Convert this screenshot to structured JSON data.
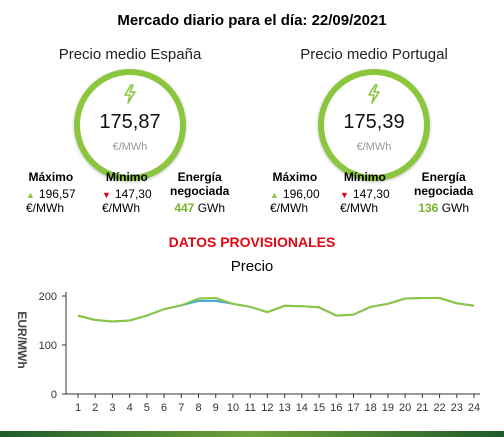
{
  "title": "Mercado diario para el día: 22/09/2021",
  "notice": "DATOS PROVISIONALES",
  "chart_title": "Precio",
  "colors": {
    "accent": "#8cc63f",
    "up": "#8cc63f",
    "down": "#e0001a",
    "notice": "#e30613"
  },
  "icons": {
    "price": "lightning-bolt-icon"
  },
  "markets": [
    {
      "name": "Precio medio España",
      "price": "175,87",
      "unit": "€/MWh",
      "max_label": "Máximo",
      "max_value": "196,57",
      "min_label": "Mínimo",
      "min_value": "147,30",
      "value_unit": "€/MWh",
      "energy_label_1": "Energía",
      "energy_label_2": "negociada",
      "energy_value": "447",
      "energy_unit": "GWh"
    },
    {
      "name": "Precio medio Portugal",
      "price": "175,39",
      "unit": "€/MWh",
      "max_label": "Máximo",
      "max_value": "196,00",
      "min_label": "Mínimo",
      "min_value": "147,30",
      "value_unit": "€/MWh",
      "energy_label_1": "Energía",
      "energy_label_2": "negociada",
      "energy_value": "136",
      "energy_unit": "GWh"
    }
  ],
  "chart_data": {
    "type": "line",
    "title": "Precio",
    "ylabel": "EUR/MWh",
    "xlabel": "",
    "x": [
      1,
      2,
      3,
      4,
      5,
      6,
      7,
      8,
      9,
      10,
      11,
      12,
      13,
      14,
      15,
      16,
      17,
      18,
      19,
      20,
      21,
      22,
      23,
      24
    ],
    "ylim": [
      0,
      200
    ],
    "yticks": [
      0,
      100,
      200
    ],
    "grid": false,
    "series": [
      {
        "color": "#3fa7d6",
        "values": [
          160,
          151,
          148,
          150,
          160,
          173,
          181,
          190,
          190,
          184,
          178,
          167,
          180,
          179,
          177,
          160,
          162,
          178,
          184,
          195,
          196,
          196,
          185,
          180
        ]
      },
      {
        "color": "#8cc63f",
        "values": [
          160,
          151,
          148,
          150,
          160,
          173,
          181,
          195,
          196,
          184,
          178,
          167,
          180,
          179,
          177,
          160,
          162,
          178,
          184,
          195,
          196,
          196,
          185,
          180
        ]
      }
    ]
  }
}
